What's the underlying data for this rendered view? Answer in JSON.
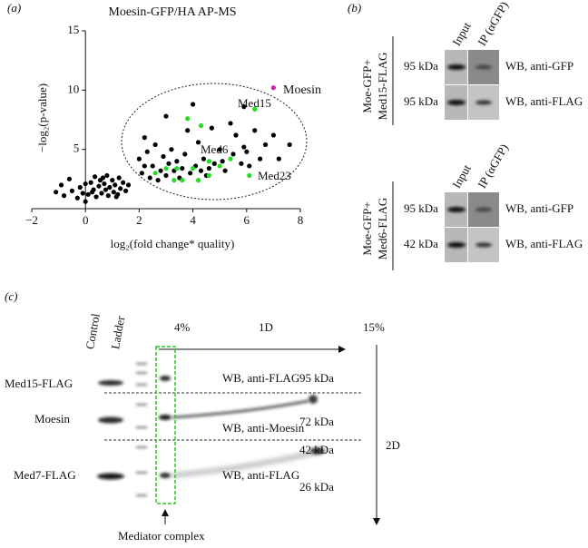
{
  "chart_data": {
    "type": "scatter",
    "panel_label": "(a)",
    "title": "Moesin-GFP/HA AP-MS",
    "xlabel": "log₂(fold change* quality)",
    "ylabel": "−log₂(p-value)",
    "xlim": [
      -2,
      8
    ],
    "ylim": [
      0,
      15
    ],
    "xticks": [
      {
        "value": -2,
        "label": "−2"
      },
      0,
      2,
      4,
      6,
      8
    ],
    "yticks": [
      5,
      10,
      15
    ],
    "series": [
      {
        "color": "#000000",
        "x": [
          -1.1,
          -0.9,
          -0.8,
          -0.6,
          -0.5,
          -0.3,
          -0.2,
          0,
          0.1,
          0.2,
          0.3,
          0.35,
          0.4,
          0.5,
          0.55,
          0.6,
          0.7,
          0.75,
          0.8,
          0.85,
          0.9,
          1.0,
          1.05,
          1.1,
          1.2,
          1.25,
          1.3,
          1.4,
          1.5,
          1.6,
          0.0,
          0.25,
          0.65,
          1.15,
          -0.1,
          2.0,
          2.1,
          2.2,
          2.3,
          2.5,
          2.6,
          2.7,
          2.8,
          2.9,
          3.0,
          3.1,
          3.2,
          3.3,
          3.4,
          3.5,
          3.6,
          3.7,
          3.8,
          3.9,
          4.0,
          4.1,
          4.2,
          4.3,
          4.4,
          4.5,
          4.6,
          4.7,
          4.8,
          5.0,
          5.1,
          5.2,
          5.4,
          5.5,
          5.6,
          5.8,
          5.9,
          6.0,
          6.1,
          6.3,
          6.5,
          6.7,
          7.0,
          7.2,
          7.6,
          5.9,
          2.4,
          3.0,
          2.2
        ],
        "values": [
          1.4,
          2.0,
          1.1,
          2.5,
          1.5,
          0.9,
          1.8,
          0.6,
          1.2,
          2.2,
          1.6,
          2.7,
          1.0,
          1.9,
          2.4,
          1.3,
          2.1,
          1.6,
          2.8,
          1.1,
          1.8,
          2.4,
          1.4,
          2.0,
          1.2,
          2.6,
          1.7,
          2.2,
          1.5,
          2.0,
          2.1,
          1.4,
          2.6,
          1.0,
          1.3,
          4.2,
          3.0,
          6.0,
          4.8,
          3.6,
          5.4,
          2.4,
          3.2,
          4.4,
          2.8,
          3.8,
          5.0,
          3.2,
          4.0,
          2.6,
          3.4,
          4.6,
          6.6,
          3.0,
          8.8,
          3.6,
          5.6,
          3.2,
          4.2,
          2.8,
          3.4,
          6.8,
          3.8,
          5.0,
          4.0,
          3.2,
          7.2,
          4.6,
          6.2,
          3.8,
          5.2,
          4.8,
          3.6,
          6.6,
          4.2,
          5.4,
          6.2,
          4.2,
          5.4,
          8.6,
          2.6,
          7.8,
          3.6
        ]
      },
      {
        "color": "#22dd22",
        "x": [
          3.8,
          4.3,
          6.3,
          4.6,
          3.0,
          3.3,
          3.6,
          4.0,
          4.2,
          5.0,
          5.4,
          6.1,
          2.6,
          4.6,
          3.4
        ],
        "values": [
          7.6,
          7.0,
          8.4,
          4.0,
          3.4,
          2.4,
          2.4,
          3.4,
          2.4,
          3.6,
          4.2,
          2.8,
          3.0,
          2.8,
          3.4
        ]
      },
      {
        "color": "#cc22aa",
        "x": [
          7.0
        ],
        "values": [
          10.2
        ]
      }
    ],
    "annotations": [
      "Moesin",
      "Med15",
      "Med6",
      "Med23"
    ]
  },
  "panel_b": {
    "label": "(b)",
    "columns": [
      "Input",
      "IP (αGFP)"
    ],
    "groups": [
      {
        "name": [
          "Moe-GFP+",
          "Med15-FLAG"
        ],
        "rows": [
          {
            "size": "95 kDa",
            "blot": "WB, anti-GFP"
          },
          {
            "size": "95 kDa",
            "blot": "WB, anti-FLAG"
          }
        ]
      },
      {
        "name": [
          "Moe-GFP+",
          "Med6-FLAG"
        ],
        "rows": [
          {
            "size": "95 kDa",
            "blot": "WB, anti-GFP"
          },
          {
            "size": "42 kDa",
            "blot": "WB, anti-FLAG"
          }
        ]
      }
    ]
  },
  "panel_c": {
    "label": "(c)",
    "lanes": [
      "Control",
      "Ladder"
    ],
    "gradient": [
      "4%",
      "1D",
      "15%"
    ],
    "second_dimension": "2D",
    "proteins": [
      "Med15-FLAG",
      "Moesin",
      "Med7-FLAG"
    ],
    "blots": [
      "WB, anti-FLAG",
      "WB, anti-Moesin",
      "WB, anti-FLAG"
    ],
    "sizes": [
      "95 kDa",
      "72 kDa",
      "42 kDa",
      "26 kDa"
    ],
    "note": "Mediator complex"
  }
}
